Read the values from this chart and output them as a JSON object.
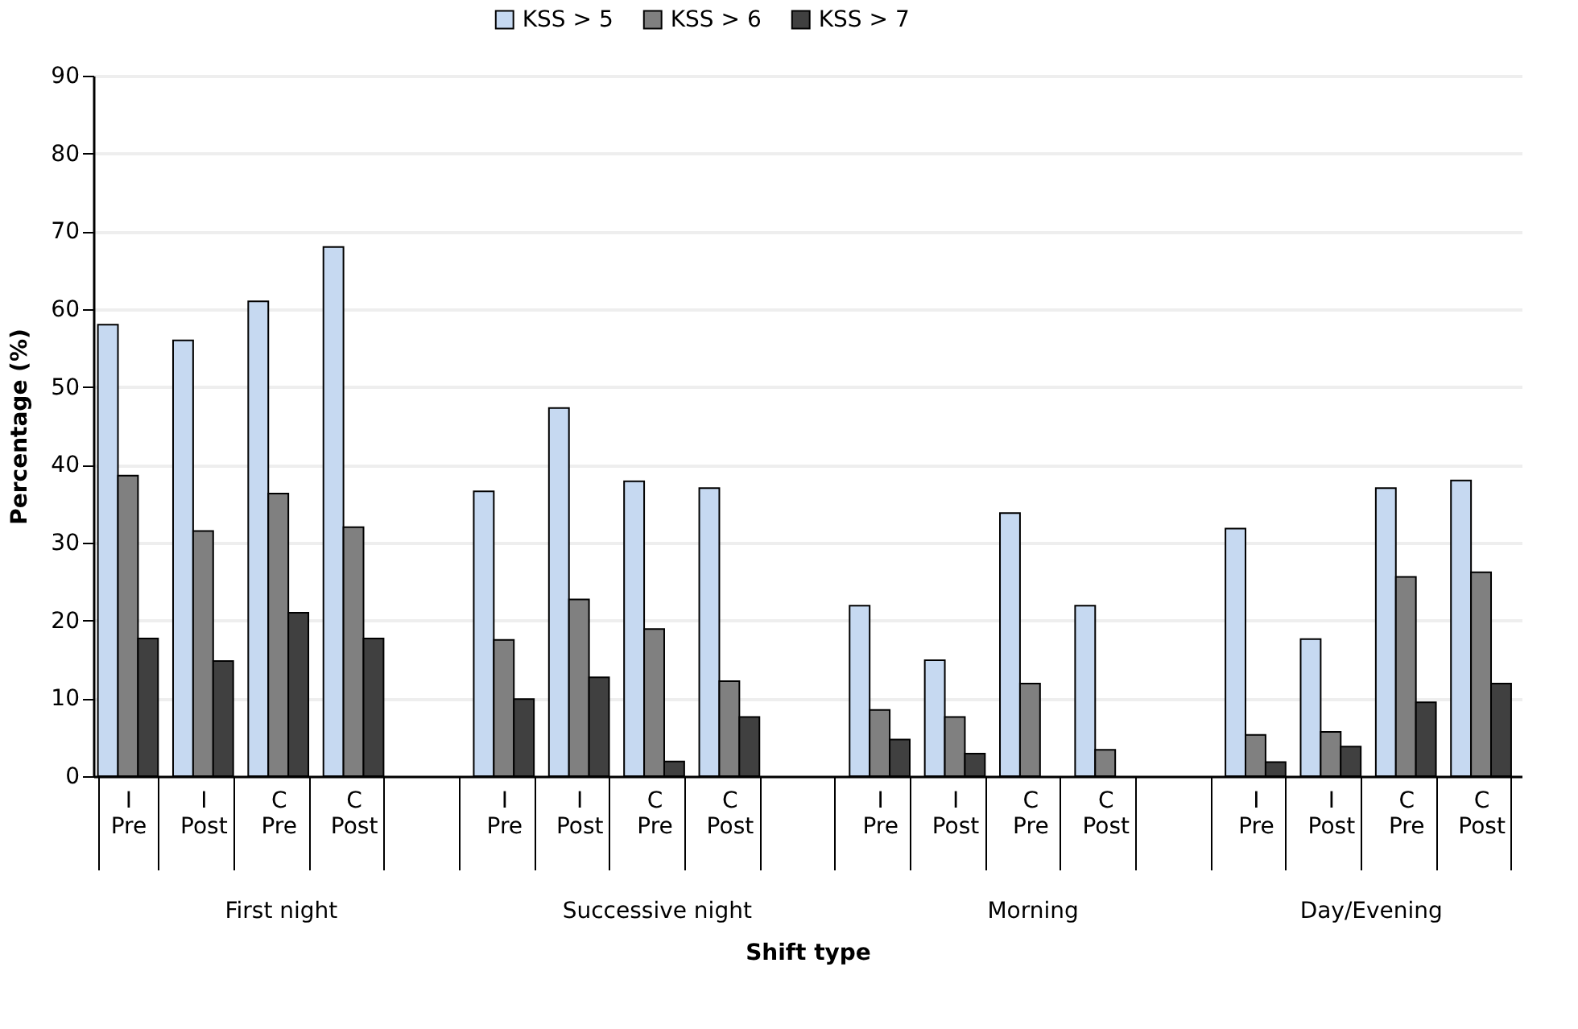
{
  "chart_data": {
    "type": "bar",
    "ylabel": "Percentage (%)",
    "xlabel": "Shift type",
    "categories": [
      "I Pre",
      "I Post",
      "C Pre",
      "C Post",
      null,
      "I Pre",
      "I Post",
      "C Pre",
      "C Post",
      null,
      "I Pre",
      "I Post",
      "C Pre",
      "C Post",
      null,
      "I Pre",
      "I Post",
      "C Pre",
      "C Post"
    ],
    "series": [
      {
        "name": "KSS > 5",
        "color": "#c6d9f1",
        "values": [
          58,
          56,
          61,
          68,
          null,
          36.6,
          47.3,
          37.9,
          37,
          null,
          21.9,
          14.9,
          33.8,
          21.9,
          null,
          31.8,
          17.6,
          37,
          38
        ]
      },
      {
        "name": "KSS > 6",
        "color": "#808080",
        "values": [
          38.6,
          31.5,
          36.3,
          32,
          null,
          17.5,
          22.7,
          18.9,
          12.2,
          null,
          8.5,
          7.6,
          11.9,
          3.4,
          null,
          5.3,
          5.7,
          25.6,
          26.2
        ]
      },
      {
        "name": "KSS > 7",
        "color": "#404040",
        "values": [
          17.7,
          14.8,
          21,
          17.7,
          null,
          9.9,
          12.7,
          1.9,
          7.6,
          null,
          4.7,
          2.9,
          null,
          null,
          null,
          1.8,
          3.8,
          9.5,
          11.9
        ]
      }
    ],
    "ylim": [
      0,
      90
    ],
    "yticks": [
      0,
      10,
      20,
      30,
      40,
      50,
      60,
      70,
      80,
      90
    ],
    "grid": "y",
    "legend": "top",
    "annotations": [
      "First night",
      "Successive night",
      "Morning",
      "Day/Evening"
    ]
  }
}
